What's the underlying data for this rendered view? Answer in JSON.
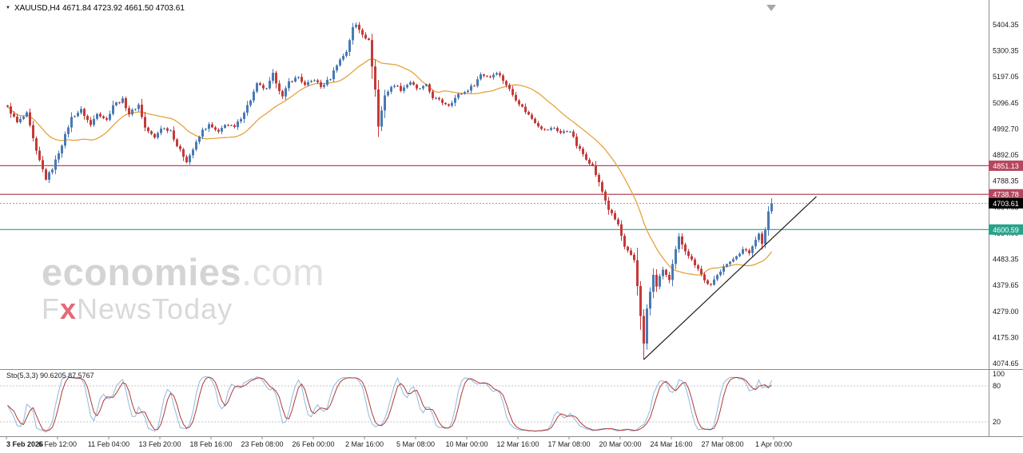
{
  "header": {
    "symbol_line": "XAUUSD,H4 4671.84 4723.92 4661.50 4703.61",
    "dropdown_glyph": "▼"
  },
  "watermark": {
    "brand": "economies",
    "brand_domain": ".com",
    "sub_prefix": "F",
    "sub_accent": "x",
    "sub_rest": "NewsToday"
  },
  "colors": {
    "candle_up": "#4a79b4",
    "candle_down": "#c43a3a",
    "ma_line": "#e6a33c",
    "trendline": "#1c1c1c",
    "level_resistance": "#b4485e",
    "level_support": "#27a38b",
    "bid_badge": "#000000",
    "bid_line": "#a0a0a0",
    "sto_main": "#8db9dd",
    "sto_signal": "#b03a36",
    "separator": "#8c8c8c",
    "grid_dash": "#c6c6c6"
  },
  "chart_data": {
    "type": "candlestick",
    "symbol": "XAUUSD",
    "timeframe": "H4",
    "current_ohlc": {
      "open": 4671.84,
      "high": 4723.92,
      "low": 4661.5,
      "close": 4703.61
    },
    "y_ticks": [
      5404.35,
      5300.35,
      5197.05,
      5096.45,
      4992.7,
      4892.05,
      4788.35,
      4684.65,
      4584.0,
      4483.35,
      4379.65,
      4279.0,
      4175.3,
      4074.65
    ],
    "x_ticks": [
      "3 Feb 2026",
      "6 Feb 12:00",
      "11 Feb 04:00",
      "13 Feb 20:00",
      "18 Feb 16:00",
      "23 Feb 08:00",
      "26 Feb 00:00",
      "2 Mar 16:00",
      "5 Mar 08:00",
      "10 Mar 00:00",
      "12 Mar 16:00",
      "17 Mar 08:00",
      "20 Mar 00:00",
      "24 Mar 16:00",
      "27 Mar 08:00",
      "1 Apr 00:00"
    ],
    "levels": [
      {
        "value": 4851.13,
        "role": "resistance"
      },
      {
        "value": 4738.78,
        "role": "resistance"
      },
      {
        "value": 4703.61,
        "role": "bid"
      },
      {
        "value": 4600.59,
        "role": "support"
      }
    ],
    "trendline": {
      "from": [
        199,
        4090
      ],
      "to": [
        253,
        4730
      ]
    },
    "ma": {
      "period": 20
    },
    "candles": {
      "count": 240,
      "noise": 6,
      "close_path": [
        [
          0,
          5080
        ],
        [
          3,
          5020
        ],
        [
          6,
          5055
        ],
        [
          9,
          4905
        ],
        [
          12,
          4800
        ],
        [
          14,
          4840
        ],
        [
          17,
          4935
        ],
        [
          20,
          5040
        ],
        [
          23,
          5070
        ],
        [
          26,
          5010
        ],
        [
          28,
          5060
        ],
        [
          31,
          5030
        ],
        [
          33,
          5090
        ],
        [
          36,
          5110
        ],
        [
          38,
          5055
        ],
        [
          41,
          5090
        ],
        [
          43,
          5000
        ],
        [
          46,
          4960
        ],
        [
          48,
          5000
        ],
        [
          51,
          4990
        ],
        [
          53,
          4930
        ],
        [
          56,
          4870
        ],
        [
          58,
          4915
        ],
        [
          61,
          4990
        ],
        [
          63,
          5010
        ],
        [
          66,
          4980
        ],
        [
          68,
          5015
        ],
        [
          71,
          5000
        ],
        [
          73,
          5040
        ],
        [
          76,
          5110
        ],
        [
          78,
          5170
        ],
        [
          81,
          5150
        ],
        [
          83,
          5210
        ],
        [
          86,
          5120
        ],
        [
          88,
          5180
        ],
        [
          91,
          5200
        ],
        [
          93,
          5165
        ],
        [
          96,
          5190
        ],
        [
          98,
          5160
        ],
        [
          101,
          5195
        ],
        [
          103,
          5250
        ],
        [
          106,
          5300
        ],
        [
          108,
          5392
        ],
        [
          109,
          5404
        ],
        [
          111,
          5370
        ],
        [
          113,
          5340
        ],
        [
          115,
          5150
        ],
        [
          116,
          5005
        ],
        [
          118,
          5130
        ],
        [
          121,
          5170
        ],
        [
          123,
          5150
        ],
        [
          126,
          5180
        ],
        [
          128,
          5150
        ],
        [
          131,
          5165
        ],
        [
          133,
          5120
        ],
        [
          136,
          5100
        ],
        [
          138,
          5090
        ],
        [
          141,
          5130
        ],
        [
          143,
          5140
        ],
        [
          146,
          5170
        ],
        [
          148,
          5210
        ],
        [
          151,
          5200
        ],
        [
          153,
          5220
        ],
        [
          156,
          5170
        ],
        [
          158,
          5130
        ],
        [
          161,
          5080
        ],
        [
          163,
          5050
        ],
        [
          166,
          5010
        ],
        [
          168,
          4990
        ],
        [
          171,
          5000
        ],
        [
          173,
          4980
        ],
        [
          176,
          4990
        ],
        [
          178,
          4930
        ],
        [
          181,
          4880
        ],
        [
          183,
          4850
        ],
        [
          186,
          4750
        ],
        [
          188,
          4680
        ],
        [
          191,
          4620
        ],
        [
          193,
          4530
        ],
        [
          196,
          4480
        ],
        [
          197,
          4380
        ],
        [
          199,
          4150
        ],
        [
          200,
          4290
        ],
        [
          202,
          4420
        ],
        [
          203,
          4380
        ],
        [
          205,
          4445
        ],
        [
          207,
          4400
        ],
        [
          209,
          4520
        ],
        [
          210,
          4570
        ],
        [
          212,
          4520
        ],
        [
          214,
          4480
        ],
        [
          216,
          4450
        ],
        [
          218,
          4400
        ],
        [
          220,
          4380
        ],
        [
          222,
          4420
        ],
        [
          224,
          4460
        ],
        [
          226,
          4470
        ],
        [
          228,
          4500
        ],
        [
          230,
          4520
        ],
        [
          232,
          4510
        ],
        [
          234,
          4560
        ],
        [
          235,
          4590
        ],
        [
          236,
          4545
        ],
        [
          237,
          4600
        ],
        [
          238,
          4671.84
        ],
        [
          239,
          4703.61
        ]
      ],
      "high_overrides": [
        [
          109,
          5414
        ]
      ],
      "low_overrides": [
        [
          12,
          4793
        ],
        [
          199,
          4090
        ]
      ]
    },
    "sub_indicator": {
      "name": "Sto(5,3,3)",
      "value_main": "90.6205",
      "value_signal": "87.5767",
      "levels": [
        100,
        80,
        20
      ]
    }
  }
}
